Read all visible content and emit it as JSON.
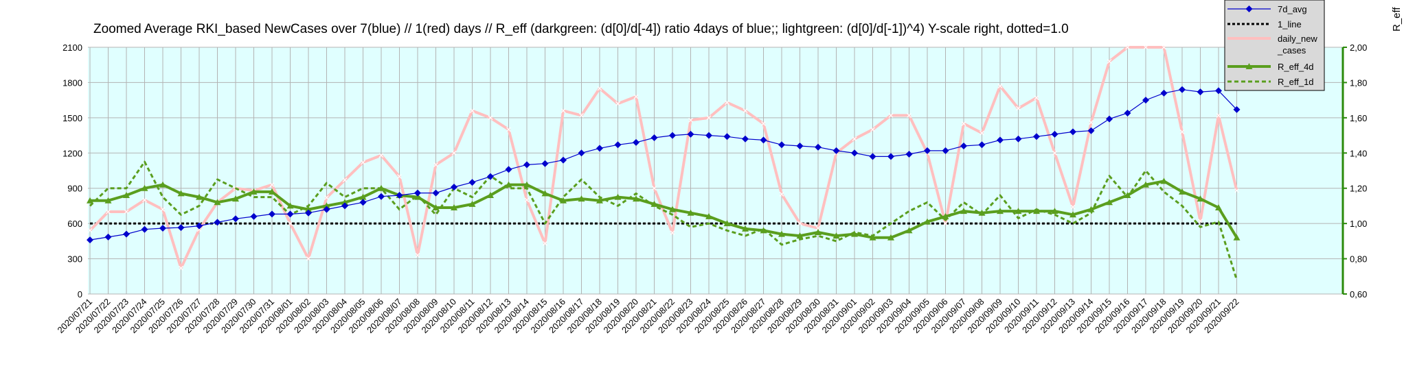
{
  "chart_data": {
    "type": "line",
    "title": "Zoomed Average RKI_based NewCases over 7(blue) // 1(red) days //  R_eff (darkgreen: (d[0]/d[-4]) ratio 4days of blue;; lightgreen: (d[0]/d[-1])^4) Y-scale right, dotted=1.0",
    "right_axis_label": "R_eff",
    "grid": true,
    "legend_position": "top-right",
    "x_labels": [
      "2020/07/21",
      "2020/07/22",
      "2020/07/23",
      "2020/07/24",
      "2020/07/25",
      "2020/07/26",
      "2020/07/27",
      "2020/07/28",
      "2020/07/29",
      "2020/07/30",
      "2020/07/31",
      "2020/08/01",
      "2020/08/02",
      "2020/08/03",
      "2020/08/04",
      "2020/08/05",
      "2020/08/06",
      "2020/08/07",
      "2020/08/08",
      "2020/08/09",
      "2020/08/10",
      "2020/08/11",
      "2020/08/12",
      "2020/08/13",
      "2020/08/14",
      "2020/08/15",
      "2020/08/16",
      "2020/08/17",
      "2020/08/18",
      "2020/08/19",
      "2020/08/20",
      "2020/08/21",
      "2020/08/22",
      "2020/08/23",
      "2020/08/24",
      "2020/08/25",
      "2020/08/26",
      "2020/08/27",
      "2020/08/28",
      "2020/08/29",
      "2020/08/30",
      "2020/08/31",
      "2020/09/01",
      "2020/09/02",
      "2020/09/03",
      "2020/09/04",
      "2020/09/05",
      "2020/09/06",
      "2020/09/07",
      "2020/09/08",
      "2020/09/09",
      "2020/09/10",
      "2020/09/11",
      "2020/09/12",
      "2020/09/13",
      "2020/09/14",
      "2020/09/15",
      "2020/09/16",
      "2020/09/17",
      "2020/09/18",
      "2020/09/19",
      "2020/09/20",
      "2020/09/21",
      "2020/09/22"
    ],
    "y_left": {
      "range": [
        0,
        2100
      ],
      "ticks": [
        "0",
        "300",
        "600",
        "900",
        "1200",
        "1500",
        "1800",
        "2100"
      ]
    },
    "y_right": {
      "range": [
        0.6,
        2.0
      ],
      "ticks": [
        "0,60",
        "0,80",
        "1,00",
        "1,20",
        "1,40",
        "1,60",
        "1,80",
        "2,00"
      ]
    },
    "series": [
      {
        "name": "7d_avg",
        "axis": "left",
        "color": "#0000cc",
        "style": "solid-diamond",
        "values": [
          460,
          485,
          510,
          550,
          560,
          565,
          580,
          610,
          640,
          660,
          680,
          680,
          690,
          720,
          750,
          780,
          830,
          840,
          860,
          860,
          910,
          950,
          1000,
          1060,
          1100,
          1110,
          1140,
          1200,
          1240,
          1270,
          1290,
          1330,
          1350,
          1360,
          1350,
          1340,
          1320,
          1310,
          1270,
          1260,
          1250,
          1220,
          1200,
          1170,
          1170,
          1190,
          1220,
          1220,
          1260,
          1270,
          1310,
          1320,
          1340,
          1360,
          1380,
          1390,
          1490,
          1540,
          1650,
          1710,
          1740,
          1720,
          1730,
          1570
        ]
      },
      {
        "name": "1_line",
        "axis": "right",
        "color": "#000000",
        "style": "dotted",
        "values": [
          1.0,
          1.0,
          1.0,
          1.0,
          1.0,
          1.0,
          1.0,
          1.0,
          1.0,
          1.0,
          1.0,
          1.0,
          1.0,
          1.0,
          1.0,
          1.0,
          1.0,
          1.0,
          1.0,
          1.0,
          1.0,
          1.0,
          1.0,
          1.0,
          1.0,
          1.0,
          1.0,
          1.0,
          1.0,
          1.0,
          1.0,
          1.0,
          1.0,
          1.0,
          1.0,
          1.0,
          1.0,
          1.0,
          1.0,
          1.0,
          1.0,
          1.0,
          1.0,
          1.0,
          1.0,
          1.0,
          1.0,
          1.0,
          1.0,
          1.0,
          1.0,
          1.0,
          1.0,
          1.0,
          1.0,
          1.0,
          1.0,
          1.0,
          1.0,
          1.0,
          1.0,
          1.0,
          1.0,
          1.0
        ]
      },
      {
        "name": "daily_new_cases",
        "axis": "left",
        "color": "#ffbfbf",
        "style": "thick-solid",
        "values": [
          540,
          700,
          700,
          800,
          720,
          220,
          550,
          780,
          900,
          880,
          930,
          600,
          300,
          820,
          970,
          1120,
          1180,
          1000,
          330,
          1100,
          1200,
          1560,
          1500,
          1400,
          800,
          430,
          1560,
          1520,
          1750,
          1620,
          1680,
          900,
          520,
          1480,
          1500,
          1630,
          1560,
          1450,
          850,
          600,
          560,
          1200,
          1320,
          1400,
          1520,
          1520,
          1200,
          600,
          1450,
          1370,
          1770,
          1580,
          1670,
          1200,
          740,
          1460,
          1980,
          2100,
          2100,
          2100,
          1380,
          620,
          1520,
          880
        ]
      },
      {
        "name": "R_eff_4d",
        "axis": "right",
        "color": "#5a9e1e",
        "style": "thick-triangle",
        "values": [
          1.13,
          1.13,
          1.16,
          1.2,
          1.22,
          1.17,
          1.15,
          1.12,
          1.14,
          1.18,
          1.18,
          1.1,
          1.08,
          1.1,
          1.12,
          1.15,
          1.2,
          1.16,
          1.15,
          1.09,
          1.09,
          1.11,
          1.16,
          1.22,
          1.22,
          1.17,
          1.13,
          1.14,
          1.13,
          1.15,
          1.14,
          1.11,
          1.08,
          1.06,
          1.04,
          1.0,
          0.97,
          0.96,
          0.94,
          0.93,
          0.95,
          0.93,
          0.94,
          0.92,
          0.92,
          0.96,
          1.01,
          1.04,
          1.07,
          1.06,
          1.07,
          1.07,
          1.07,
          1.07,
          1.05,
          1.08,
          1.12,
          1.16,
          1.22,
          1.24,
          1.18,
          1.14,
          1.09,
          0.92
        ]
      },
      {
        "name": "R_eff_1d",
        "axis": "right",
        "color": "#5a9e1e",
        "style": "thick-dotted",
        "values": [
          1.1,
          1.2,
          1.2,
          1.35,
          1.15,
          1.05,
          1.1,
          1.25,
          1.2,
          1.15,
          1.15,
          1.05,
          1.1,
          1.23,
          1.15,
          1.2,
          1.2,
          1.08,
          1.16,
          1.05,
          1.2,
          1.15,
          1.27,
          1.2,
          1.2,
          1.0,
          1.15,
          1.25,
          1.15,
          1.1,
          1.17,
          1.1,
          1.05,
          0.98,
          1.0,
          0.96,
          0.93,
          0.97,
          0.88,
          0.91,
          0.93,
          0.9,
          0.95,
          0.93,
          1.0,
          1.07,
          1.12,
          1.02,
          1.12,
          1.05,
          1.16,
          1.03,
          1.08,
          1.05,
          1.0,
          1.06,
          1.27,
          1.15,
          1.3,
          1.18,
          1.1,
          0.98,
          1.01,
          0.68
        ]
      }
    ],
    "legend": [
      "7d_avg",
      "1_line",
      "daily_new\n_cases",
      "R_eff_4d",
      "R_eff_1d"
    ]
  }
}
